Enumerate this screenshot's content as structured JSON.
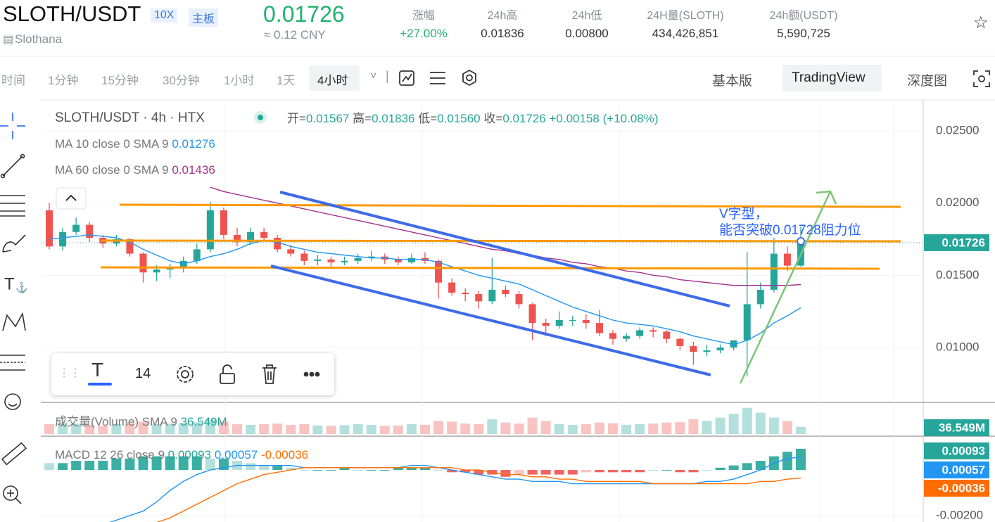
{
  "header": {
    "symbol": "SLOTH/USDT",
    "leverage": "10X",
    "board": "主板",
    "project": "Slothana",
    "price": "0.01726",
    "price_cny": "≈ 0.12 CNY",
    "stats": [
      {
        "label": "涨幅",
        "value": "+27.00%"
      },
      {
        "label": "24h高",
        "value": "0.01836"
      },
      {
        "label": "24h低",
        "value": "0.00800"
      },
      {
        "label": "24H量(SLOTH)",
        "value": "434,426,851"
      },
      {
        "label": "24h额(USDT)",
        "value": "5,590,725"
      }
    ]
  },
  "toolbar": {
    "intervals": [
      "时间",
      "1分钟",
      "15分钟",
      "30分钟",
      "1小时",
      "1天",
      "4小时"
    ],
    "selected": 6,
    "views": [
      "基本版",
      "TradingView",
      "深度图"
    ],
    "selected_view": 1
  },
  "chart": {
    "type": "candlestick",
    "legend": {
      "symbol": "SLOTH/USDT · 4h · HTX",
      "ohlc": [
        {
          "label": "开=",
          "value": "0.01567"
        },
        {
          "label": "高=",
          "value": "0.01836"
        },
        {
          "label": "低=",
          "value": "0.01560"
        },
        {
          "label": "收=",
          "value": "0.01726"
        }
      ],
      "change": "+0.00158 (+10.08%)"
    },
    "up_color": "#26a69a",
    "down_color": "#ef5350",
    "ylim": [
      0.0062,
      0.0271
    ],
    "yticks": [
      {
        "value": 0.01,
        "label": "0.01000"
      },
      {
        "value": 0.015,
        "label": "0.01500"
      },
      {
        "value": 0.02,
        "label": "0.02000"
      },
      {
        "value": 0.025,
        "label": "0.02500"
      }
    ],
    "candles": [
      [
        0.0195,
        0.02,
        0.0168,
        0.017
      ],
      [
        0.017,
        0.0183,
        0.0167,
        0.018
      ],
      [
        0.018,
        0.019,
        0.0178,
        0.0185
      ],
      [
        0.0185,
        0.0187,
        0.0173,
        0.0176
      ],
      [
        0.0176,
        0.0178,
        0.0169,
        0.0172
      ],
      [
        0.0172,
        0.0178,
        0.017,
        0.0175
      ],
      [
        0.0175,
        0.0176,
        0.0163,
        0.0165
      ],
      [
        0.0165,
        0.0166,
        0.0145,
        0.0152
      ],
      [
        0.0152,
        0.0157,
        0.0146,
        0.0154
      ],
      [
        0.0154,
        0.0158,
        0.0148,
        0.0155
      ],
      [
        0.0155,
        0.0163,
        0.0152,
        0.016
      ],
      [
        0.016,
        0.0172,
        0.0158,
        0.0168
      ],
      [
        0.0168,
        0.0201,
        0.0166,
        0.0195
      ],
      [
        0.0195,
        0.0197,
        0.0175,
        0.0178
      ],
      [
        0.0178,
        0.0183,
        0.017,
        0.0173
      ],
      [
        0.0173,
        0.0183,
        0.0171,
        0.018
      ],
      [
        0.018,
        0.0183,
        0.0174,
        0.0176
      ],
      [
        0.0176,
        0.0178,
        0.0166,
        0.0168
      ],
      [
        0.0168,
        0.0171,
        0.0163,
        0.0165
      ],
      [
        0.0165,
        0.0167,
        0.0157,
        0.016
      ],
      [
        0.016,
        0.0164,
        0.0157,
        0.0161
      ],
      [
        0.0161,
        0.0163,
        0.0156,
        0.0159
      ],
      [
        0.0159,
        0.0163,
        0.0157,
        0.016
      ],
      [
        0.016,
        0.0165,
        0.0158,
        0.0162
      ],
      [
        0.0162,
        0.0167,
        0.016,
        0.0163
      ],
      [
        0.0163,
        0.0165,
        0.0158,
        0.0161
      ],
      [
        0.0161,
        0.0163,
        0.0157,
        0.0159
      ],
      [
        0.0159,
        0.0165,
        0.0158,
        0.0162
      ],
      [
        0.0162,
        0.0166,
        0.0158,
        0.016
      ],
      [
        0.016,
        0.0161,
        0.0134,
        0.0145
      ],
      [
        0.0145,
        0.0148,
        0.0136,
        0.0138
      ],
      [
        0.0138,
        0.0141,
        0.0132,
        0.0137
      ],
      [
        0.0137,
        0.0139,
        0.0127,
        0.0132
      ],
      [
        0.0132,
        0.0162,
        0.013,
        0.014
      ],
      [
        0.014,
        0.0143,
        0.0135,
        0.0137
      ],
      [
        0.0137,
        0.0139,
        0.0127,
        0.013
      ],
      [
        0.013,
        0.0131,
        0.0105,
        0.0117
      ],
      [
        0.0117,
        0.012,
        0.0108,
        0.0115
      ],
      [
        0.0115,
        0.0125,
        0.0113,
        0.0119
      ],
      [
        0.0119,
        0.0122,
        0.0115,
        0.0119
      ],
      [
        0.0119,
        0.0123,
        0.0113,
        0.0117
      ],
      [
        0.0117,
        0.0126,
        0.0108,
        0.011
      ],
      [
        0.011,
        0.0112,
        0.0102,
        0.0106
      ],
      [
        0.0106,
        0.011,
        0.0104,
        0.0108
      ],
      [
        0.0108,
        0.0114,
        0.0106,
        0.0112
      ],
      [
        0.0112,
        0.0114,
        0.0107,
        0.0111
      ],
      [
        0.0111,
        0.0112,
        0.0103,
        0.0106
      ],
      [
        0.0106,
        0.0107,
        0.0098,
        0.0101
      ],
      [
        0.0101,
        0.0104,
        0.0088,
        0.0097
      ],
      [
        0.0097,
        0.0102,
        0.0094,
        0.0098
      ],
      [
        0.0098,
        0.0102,
        0.0096,
        0.01
      ],
      [
        0.01,
        0.0105,
        0.0098,
        0.0105
      ],
      [
        0.0105,
        0.0166,
        0.008,
        0.013
      ],
      [
        0.013,
        0.0145,
        0.0127,
        0.014
      ],
      [
        0.014,
        0.0176,
        0.0138,
        0.0165
      ],
      [
        0.0165,
        0.017,
        0.0153,
        0.01567
      ],
      [
        0.01567,
        0.01836,
        0.0156,
        0.01726
      ]
    ],
    "ma": [
      {
        "name": "MA 10 close 0 SMA 9",
        "last": "0.01276",
        "color": "#2196f3",
        "values": [
          0.0175,
          0.0176,
          0.0177,
          0.0178,
          0.0177,
          0.0176,
          0.0173,
          0.0168,
          0.0164,
          0.016,
          0.0158,
          0.016,
          0.0163,
          0.0165,
          0.0168,
          0.0172,
          0.0174,
          0.0173,
          0.017,
          0.0168,
          0.0166,
          0.0165,
          0.0164,
          0.0163,
          0.0162,
          0.0162,
          0.0161,
          0.0161,
          0.0161,
          0.0159,
          0.0156,
          0.0153,
          0.015,
          0.0148,
          0.0146,
          0.0144,
          0.014,
          0.0136,
          0.0132,
          0.0128,
          0.0125,
          0.0122,
          0.0119,
          0.0117,
          0.0116,
          0.0115,
          0.0113,
          0.0111,
          0.0108,
          0.0106,
          0.0104,
          0.0102,
          0.0105,
          0.011,
          0.0117,
          0.0122,
          0.01276
        ]
      },
      {
        "name": "MA 60 close 0 SMA 9",
        "last": "0.01436",
        "color": "#a2318c",
        "values": [
          null,
          null,
          null,
          null,
          null,
          null,
          null,
          null,
          null,
          null,
          null,
          null,
          0.0211,
          0.0208,
          0.0206,
          0.0204,
          0.0202,
          0.02,
          0.0198,
          0.0196,
          0.0194,
          0.0192,
          0.019,
          0.0188,
          0.0186,
          0.0184,
          0.0182,
          0.018,
          0.0178,
          0.0176,
          0.0174,
          0.0172,
          0.017,
          0.0168,
          0.0167,
          0.0165,
          0.0164,
          0.0162,
          0.0161,
          0.0159,
          0.0158,
          0.0156,
          0.0155,
          0.0153,
          0.0152,
          0.015,
          0.0149,
          0.0147,
          0.0146,
          0.0145,
          0.0144,
          0.0143,
          0.0143,
          0.0143,
          0.0143,
          0.0143,
          0.01436
        ]
      }
    ],
    "annotation": [
      "V字型，",
      "能否突破0.01728阻力位"
    ],
    "drawing_toolbar": {
      "font_size": "14"
    }
  },
  "volume": {
    "title": "成交量(Volume) SMA 9",
    "sma": "36.549M",
    "ylim": [
      0,
      90
    ],
    "values": [
      30,
      35,
      32,
      28,
      25,
      30,
      33,
      38,
      30,
      32,
      34,
      36,
      45,
      38,
      30,
      28,
      30,
      32,
      28,
      30,
      26,
      25,
      27,
      30,
      28,
      25,
      26,
      30,
      28,
      40,
      38,
      32,
      30,
      45,
      35,
      32,
      50,
      40,
      30,
      28,
      30,
      35,
      33,
      28,
      30,
      32,
      35,
      36,
      45,
      40,
      50,
      62,
      80,
      65,
      50,
      40,
      22
    ]
  },
  "macd": {
    "title": "MACD 12 26 close 9",
    "hist_label": "0.00093",
    "macd_label": "0.00057",
    "signal_label": "-0.00036",
    "macd_color": "#2196f3",
    "signal_color": "#ff6d00",
    "ylim": [
      -0.00228,
      0.00142
    ],
    "yticks": [
      {
        "value": -0.002,
        "label": "-0.00200"
      }
    ],
    "hist": [
      0.0003,
      0.0003,
      0.0004,
      0.0004,
      0.0004,
      0.0005,
      0.0005,
      0.0006,
      0.0006,
      0.0006,
      0.0006,
      0.0006,
      0.0005,
      0.0005,
      0.0004,
      0.0003,
      0.0002,
      0.0002,
      0.0001,
      0,
      0,
      0,
      0.0001,
      0,
      0,
      0,
      0.0001,
      0.0001,
      0.0001,
      0,
      -0.0001,
      -0.0001,
      -0.0002,
      -0.0002,
      -0.0003,
      -0.0002,
      -0.0002,
      -0.0002,
      -0.0002,
      -0.0002,
      -0.0001,
      -0.0001,
      -0.0001,
      -0.0001,
      -0.0001,
      0,
      0,
      -0.0001,
      -0.0001,
      0,
      0.0001,
      0.0002,
      0.0003,
      0.0004,
      0.0006,
      0.0008,
      0.00093
    ],
    "macd": [
      -0.0028,
      -0.0027,
      -0.0026,
      -0.0025,
      -0.0024,
      -0.0022,
      -0.002,
      -0.0018,
      -0.0014,
      -0.0009,
      -0.0005,
      -0.0002,
      0,
      0.0001,
      0.0002,
      0.0002,
      0.0002,
      0.0002,
      0.0002,
      0.0001,
      0.0001,
      0.0001,
      0.0001,
      0.0001,
      0.0001,
      0.0001,
      0.0001,
      0.0002,
      0.0002,
      0.0001,
      0,
      -0.0001,
      -0.0002,
      -0.0003,
      -0.0004,
      -0.0004,
      -0.0005,
      -0.0005,
      -0.0005,
      -0.0006,
      -0.0006,
      -0.0006,
      -0.0006,
      -0.0006,
      -0.0006,
      -0.0006,
      -0.0006,
      -0.0006,
      -0.0006,
      -0.0005,
      -0.0005,
      -0.0004,
      -0.0002,
      0,
      0.0003,
      0.0005,
      0.00057
    ],
    "signal": [
      -0.003,
      -0.003,
      -0.0029,
      -0.0029,
      -0.0028,
      -0.0027,
      -0.0026,
      -0.0025,
      -0.0023,
      -0.0021,
      -0.0018,
      -0.0015,
      -0.0012,
      -0.0009,
      -0.0006,
      -0.0004,
      -0.0002,
      -0.0001,
      0,
      0.0001,
      0.0001,
      0.0001,
      0.0001,
      0.0001,
      0.0001,
      0.0001,
      0.0001,
      0.0001,
      0.0001,
      0.0001,
      0.0001,
      0,
      0,
      -0.0001,
      -0.0002,
      -0.0002,
      -0.0003,
      -0.0003,
      -0.0004,
      -0.0004,
      -0.0005,
      -0.0005,
      -0.0005,
      -0.0005,
      -0.0005,
      -0.0006,
      -0.0006,
      -0.0006,
      -0.0006,
      -0.0006,
      -0.0006,
      -0.0006,
      -0.0006,
      -0.0005,
      -0.0005,
      -0.0004,
      -0.00036
    ]
  }
}
